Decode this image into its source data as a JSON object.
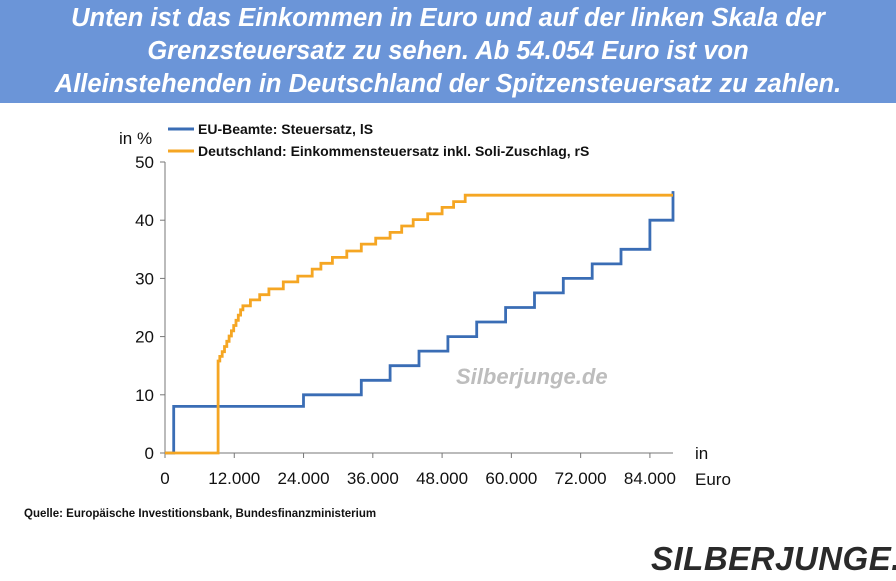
{
  "header": {
    "lines": [
      "Unten ist das Einkommen in Euro und auf der linken Skala der",
      "Grenzsteuersatz zu sehen. Ab 54.054 Euro ist von",
      "Alleinstehenden in Deutschland der Spitzensteuersatz zu zahlen."
    ]
  },
  "watermark": "Silberjunge.de",
  "source": "Quelle: Europäische Investitionsbank, Bundesfinanzministerium",
  "logo": "SILBERJUNGE.",
  "colors": {
    "header_bg": "#6b95d8",
    "series_eu": "#3a6db5",
    "series_de": "#f5a623"
  },
  "chart_data": {
    "type": "line",
    "ylabel": "in %",
    "xlabel_lines": [
      "in",
      "Euro"
    ],
    "xlim": [
      0,
      88000
    ],
    "ylim": [
      0,
      50
    ],
    "xticks": [
      0,
      12000,
      24000,
      36000,
      48000,
      60000,
      72000,
      84000
    ],
    "xtick_labels": [
      "0",
      "12.000",
      "24.000",
      "36.000",
      "48.000",
      "60.000",
      "72.000",
      "84.000"
    ],
    "yticks": [
      0,
      10,
      20,
      30,
      40,
      50
    ],
    "ytick_labels": [
      "0",
      "10",
      "20",
      "30",
      "40",
      "50"
    ],
    "grid": false,
    "legend_position": "top-left",
    "series": [
      {
        "name": "EU-Beamte: Steuersatz, lS",
        "step": true,
        "points": [
          [
            0,
            0
          ],
          [
            1500,
            0
          ],
          [
            1500,
            8
          ],
          [
            24000,
            8
          ],
          [
            24000,
            10
          ],
          [
            34000,
            10
          ],
          [
            34000,
            12.5
          ],
          [
            39000,
            12.5
          ],
          [
            39000,
            15
          ],
          [
            44000,
            15
          ],
          [
            44000,
            17.5
          ],
          [
            49000,
            17.5
          ],
          [
            49000,
            20
          ],
          [
            54000,
            20
          ],
          [
            54000,
            22.5
          ],
          [
            59000,
            22.5
          ],
          [
            59000,
            25
          ],
          [
            64000,
            25
          ],
          [
            64000,
            27.5
          ],
          [
            69000,
            27.5
          ],
          [
            69000,
            30
          ],
          [
            74000,
            30
          ],
          [
            74000,
            32.5
          ],
          [
            79000,
            32.5
          ],
          [
            79000,
            35
          ],
          [
            84000,
            35
          ],
          [
            84000,
            40
          ],
          [
            88000,
            40
          ],
          [
            88000,
            45
          ]
        ]
      },
      {
        "name": "Deutschland: Einkommensteuersatz  inkl. Soli-Zuschlag, rS",
        "step": true,
        "points": [
          [
            0,
            0
          ],
          [
            9200,
            0
          ],
          [
            9200,
            15.8
          ],
          [
            9500,
            15.8
          ],
          [
            9500,
            16.6
          ],
          [
            9900,
            16.6
          ],
          [
            9900,
            17.4
          ],
          [
            10300,
            17.4
          ],
          [
            10300,
            18.3
          ],
          [
            10700,
            18.3
          ],
          [
            10700,
            19.2
          ],
          [
            11100,
            19.2
          ],
          [
            11100,
            20.1
          ],
          [
            11500,
            20.1
          ],
          [
            11500,
            21
          ],
          [
            11900,
            21
          ],
          [
            11900,
            21.9
          ],
          [
            12300,
            21.9
          ],
          [
            12300,
            22.8
          ],
          [
            12700,
            22.8
          ],
          [
            12700,
            23.7
          ],
          [
            13100,
            23.7
          ],
          [
            13100,
            24.6
          ],
          [
            13500,
            24.6
          ],
          [
            13500,
            25.3
          ],
          [
            14800,
            25.3
          ],
          [
            14800,
            26.3
          ],
          [
            16400,
            26.3
          ],
          [
            16400,
            27.2
          ],
          [
            18000,
            27.2
          ],
          [
            18000,
            28.2
          ],
          [
            20500,
            28.2
          ],
          [
            20500,
            29.4
          ],
          [
            23000,
            29.4
          ],
          [
            23000,
            30.4
          ],
          [
            25500,
            30.4
          ],
          [
            25500,
            31.6
          ],
          [
            27000,
            31.6
          ],
          [
            27000,
            32.6
          ],
          [
            29000,
            32.6
          ],
          [
            29000,
            33.6
          ],
          [
            31500,
            33.6
          ],
          [
            31500,
            34.7
          ],
          [
            34000,
            34.7
          ],
          [
            34000,
            35.9
          ],
          [
            36500,
            35.9
          ],
          [
            36500,
            36.9
          ],
          [
            39000,
            36.9
          ],
          [
            39000,
            37.9
          ],
          [
            41000,
            37.9
          ],
          [
            41000,
            39
          ],
          [
            43000,
            39
          ],
          [
            43000,
            40.1
          ],
          [
            45500,
            40.1
          ],
          [
            45500,
            41.1
          ],
          [
            48000,
            41.1
          ],
          [
            48000,
            42.2
          ],
          [
            50000,
            42.2
          ],
          [
            50000,
            43.2
          ],
          [
            52000,
            43.2
          ],
          [
            52000,
            44.3
          ],
          [
            88000,
            44.3
          ]
        ]
      }
    ]
  }
}
